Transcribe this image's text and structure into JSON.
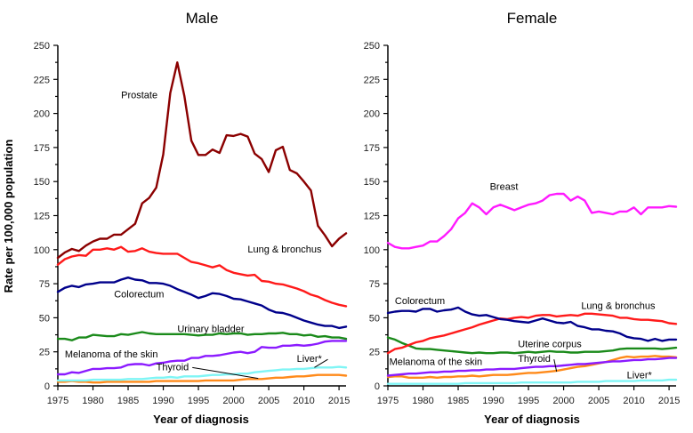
{
  "chart_data": [
    {
      "type": "line",
      "title": "Male",
      "xlabel": "Year of diagnosis",
      "ylabel": "Rate per 100,000 population",
      "xlim": [
        1975,
        2016
      ],
      "ylim": [
        0,
        250
      ],
      "xticks": [
        1975,
        1980,
        1985,
        1990,
        1995,
        2000,
        2005,
        2010,
        2015
      ],
      "yticks": [
        0,
        25,
        50,
        75,
        100,
        125,
        150,
        175,
        200,
        225,
        250
      ],
      "grid": false,
      "x": [
        1975,
        1976,
        1977,
        1978,
        1979,
        1980,
        1981,
        1982,
        1983,
        1984,
        1985,
        1986,
        1987,
        1988,
        1989,
        1990,
        1991,
        1992,
        1993,
        1994,
        1995,
        1996,
        1997,
        1998,
        1999,
        2000,
        2001,
        2002,
        2003,
        2004,
        2005,
        2006,
        2007,
        2008,
        2009,
        2010,
        2011,
        2012,
        2013,
        2014,
        2015,
        2016
      ],
      "series": [
        {
          "name": "Prostate",
          "color": "#8b0000",
          "label": "Prostate",
          "label_at": [
            1984,
            211
          ],
          "values": [
            94,
            98,
            100.5,
            99,
            103,
            106,
            108,
            108,
            111,
            111,
            115,
            119,
            134,
            138,
            145.5,
            170,
            215,
            237.5,
            213,
            180,
            169.5,
            169.5,
            173.5,
            171,
            184,
            183.5,
            185,
            183,
            170.5,
            166.5,
            157,
            173,
            175.5,
            158.5,
            156,
            150,
            143.5,
            117.5,
            110.5,
            102.5,
            108,
            112
          ]
        },
        {
          "name": "Lung & bronchus",
          "color": "#ff1a1a",
          "label": "Lung & bronchus",
          "label_at": [
            2002,
            98
          ],
          "values": [
            89,
            93,
            95,
            96,
            95.5,
            100,
            100,
            101,
            100,
            102,
            98.5,
            99,
            101,
            98.5,
            97.5,
            97,
            97,
            97,
            94,
            91,
            90,
            88.5,
            87,
            88.5,
            85,
            83,
            82,
            81,
            81.5,
            77,
            76.5,
            75,
            74.5,
            73,
            71.5,
            69.5,
            67,
            65.5,
            63,
            61,
            59.5,
            58.5
          ]
        },
        {
          "name": "Colorectum",
          "color": "#00008b",
          "label": "Colorectum",
          "label_at": [
            1983,
            65
          ],
          "values": [
            69,
            72,
            73.5,
            72.5,
            74.5,
            75,
            76,
            76,
            76,
            78,
            79.5,
            78,
            77.5,
            75.5,
            75.5,
            75,
            73.5,
            71,
            69,
            67,
            64.5,
            66,
            68,
            67.5,
            66,
            64,
            63.5,
            62,
            60.5,
            59,
            56,
            54,
            53.5,
            52,
            50,
            48,
            46.5,
            45,
            44,
            44,
            42.5,
            43.5
          ]
        },
        {
          "name": "Urinary bladder",
          "color": "#1a8a1a",
          "label": "Urinary bladder",
          "label_at": [
            1992,
            39.5
          ],
          "values": [
            34.5,
            34.5,
            33.5,
            35.5,
            35.5,
            37.5,
            37,
            36.5,
            36.5,
            38,
            37.5,
            38.5,
            39.5,
            38.5,
            38,
            38,
            38,
            38,
            38,
            37.5,
            37,
            37.5,
            37.5,
            38.5,
            38,
            38.5,
            38.5,
            37.5,
            38,
            38,
            38.5,
            38.5,
            39,
            38,
            38,
            37,
            37.5,
            36,
            36.5,
            35.5,
            35.5,
            34.5
          ]
        },
        {
          "name": "Melanoma of the skin",
          "color": "#8b1aff",
          "label": "Melanoma of the skin",
          "label_at": [
            1976,
            21
          ],
          "values": [
            8.5,
            8.5,
            10,
            9.5,
            11,
            12.5,
            12.5,
            13,
            13,
            13.5,
            15.5,
            16,
            16,
            15,
            16.5,
            17,
            18,
            18.5,
            18.5,
            20.5,
            20.5,
            22,
            22,
            22.5,
            23.5,
            24.5,
            25,
            24,
            25,
            28.5,
            28,
            28,
            29.5,
            29.5,
            30,
            29.5,
            30,
            31,
            32.5,
            33,
            33,
            33
          ]
        },
        {
          "name": "Liver*",
          "color": "#7ff5f5",
          "label": "Liver*",
          "label_at": [
            2009,
            17.5
          ],
          "leader_to": [
            2011.5,
            13.5
          ],
          "values": [
            4,
            4,
            4,
            4,
            4,
            4.5,
            4.5,
            4.5,
            4.5,
            4.5,
            5,
            5,
            5,
            5.5,
            6,
            6,
            6.5,
            6,
            7,
            7,
            7,
            7.5,
            8,
            8,
            8.5,
            8.5,
            9,
            9,
            10,
            10.5,
            11,
            11.5,
            12,
            12,
            12.5,
            12.5,
            13,
            13.5,
            13.5,
            13.5,
            14,
            13.5
          ]
        },
        {
          "name": "Thyroid",
          "color": "#ff8a1a",
          "label": "Thyroid",
          "label_at": [
            1989,
            11.5
          ],
          "leader_to": [
            2003.5,
            5.5
          ],
          "values": [
            3,
            3,
            3.5,
            3,
            3,
            2.5,
            2.5,
            3,
            3,
            3,
            3,
            3,
            3,
            3,
            3.5,
            3.5,
            3.5,
            3.5,
            3.5,
            3.5,
            3.5,
            4,
            4,
            4,
            4,
            4,
            4.5,
            5,
            5,
            5,
            5.5,
            6,
            6,
            6.5,
            7,
            7,
            7.5,
            8,
            8,
            8,
            8,
            7.5
          ]
        }
      ]
    },
    {
      "type": "line",
      "title": "Female",
      "xlabel": "Year of diagnosis",
      "ylabel": "",
      "xlim": [
        1975,
        2016
      ],
      "ylim": [
        0,
        250
      ],
      "xticks": [
        1975,
        1980,
        1985,
        1990,
        1995,
        2000,
        2005,
        2010,
        2015
      ],
      "yticks": [
        0,
        25,
        50,
        75,
        100,
        125,
        150,
        175,
        200,
        225,
        250
      ],
      "grid": false,
      "x": [
        1975,
        1976,
        1977,
        1978,
        1979,
        1980,
        1981,
        1982,
        1983,
        1984,
        1985,
        1986,
        1987,
        1988,
        1989,
        1990,
        1991,
        1992,
        1993,
        1994,
        1995,
        1996,
        1997,
        1998,
        1999,
        2000,
        2001,
        2002,
        2003,
        2004,
        2005,
        2006,
        2007,
        2008,
        2009,
        2010,
        2011,
        2012,
        2013,
        2014,
        2015,
        2016
      ],
      "series": [
        {
          "name": "Breast",
          "color": "#ff1aff",
          "label": "Breast",
          "label_at": [
            1989.5,
            144
          ],
          "values": [
            105,
            102,
            101,
            101,
            102,
            103,
            106,
            106,
            110,
            115,
            123,
            127,
            134,
            131,
            126,
            131,
            133,
            131,
            129,
            131,
            133,
            134,
            136,
            140,
            141,
            141,
            136,
            139,
            136,
            127,
            128,
            127,
            126,
            128,
            128,
            131,
            126,
            131,
            131,
            131,
            132,
            131.5
          ]
        },
        {
          "name": "Colorectum",
          "color": "#00008b",
          "label": "Colorectum",
          "label_at": [
            1976,
            60
          ],
          "values": [
            53.5,
            54.5,
            55,
            55,
            54.5,
            56.5,
            56.5,
            54.5,
            55.5,
            56,
            57.5,
            54.5,
            52.5,
            51.5,
            52,
            50.5,
            49,
            48.5,
            47.5,
            47,
            46.5,
            48,
            49.5,
            48,
            46.5,
            46,
            47,
            44,
            43,
            41.5,
            41.5,
            40.5,
            40,
            38.5,
            36,
            35,
            34.5,
            33,
            34.5,
            33,
            34,
            34
          ]
        },
        {
          "name": "Lung & bronchus",
          "color": "#ff1a1a",
          "label": "Lung & bronchus",
          "label_at": [
            2002.5,
            56.5
          ],
          "values": [
            24,
            27,
            28,
            30,
            32,
            33,
            35,
            36,
            37,
            38.5,
            40,
            41.5,
            43,
            45,
            46.5,
            48,
            49.5,
            49,
            50,
            50.5,
            50,
            51.5,
            52,
            52,
            51,
            51.5,
            52,
            51.5,
            53,
            53,
            52.5,
            52,
            51.5,
            50,
            50,
            49,
            48.5,
            48.5,
            48,
            47.5,
            46,
            45.5
          ]
        },
        {
          "name": "Uterine corpus",
          "color": "#1a8a1a",
          "label": "Uterine corpus",
          "label_at": [
            1993.5,
            28.5
          ],
          "values": [
            35.5,
            34,
            31.5,
            29.5,
            27.5,
            27,
            27,
            26.5,
            26,
            25.5,
            25,
            24.5,
            24,
            24.5,
            24,
            24,
            24.5,
            24.5,
            24,
            24.5,
            25,
            24.5,
            25,
            25.5,
            25,
            25,
            24.5,
            24.5,
            25,
            25,
            25,
            25.5,
            26,
            27,
            27.5,
            27.5,
            27.5,
            27.5,
            27.5,
            27,
            27.5,
            28
          ]
        },
        {
          "name": "Melanoma of the skin",
          "color": "#8b1aff",
          "label": "Melanoma of the skin",
          "label_at": [
            1975.2,
            15.5
          ],
          "values": [
            7.5,
            8,
            8.5,
            9,
            9,
            9.5,
            10,
            10,
            10.5,
            10.5,
            11,
            11,
            11.5,
            11.5,
            12,
            12,
            12.5,
            12.5,
            12.5,
            13,
            13.5,
            14,
            14,
            14.5,
            14.5,
            15,
            15.5,
            16,
            16,
            16.5,
            17,
            17.5,
            18,
            18,
            18.5,
            19,
            19,
            19.5,
            19.5,
            20,
            20.5,
            20.5
          ]
        },
        {
          "name": "Thyroid",
          "color": "#ff8a1a",
          "label": "Thyroid",
          "label_at": [
            1993.5,
            17.5
          ],
          "leader_to": [
            1999,
            10.5
          ],
          "values": [
            6.5,
            7,
            7,
            6,
            6,
            6,
            6.5,
            6,
            6.5,
            6.5,
            7,
            7,
            7.5,
            7,
            7.5,
            8,
            8,
            8,
            8.5,
            9,
            9.5,
            9.5,
            10,
            10.5,
            11,
            12,
            13,
            14,
            14.5,
            15.5,
            16.5,
            17.5,
            19,
            20.5,
            21.5,
            21,
            21.5,
            21.5,
            22,
            21.5,
            21.5,
            21
          ]
        },
        {
          "name": "Liver*",
          "color": "#7ff5f5",
          "label": "Liver*",
          "label_at": [
            2009,
            5.5
          ],
          "values": [
            1.5,
            1.5,
            1.5,
            1.5,
            1.5,
            1.5,
            1.5,
            1.5,
            1.5,
            1.5,
            1.5,
            2,
            2,
            2,
            2,
            2,
            2,
            2,
            2,
            2.5,
            2.5,
            2.5,
            2.5,
            2.5,
            2.5,
            2.5,
            2.5,
            3,
            3,
            3,
            3,
            3.5,
            3.5,
            3.5,
            3.5,
            3.5,
            4,
            4,
            4,
            4,
            4.5,
            4.5
          ]
        }
      ]
    }
  ]
}
